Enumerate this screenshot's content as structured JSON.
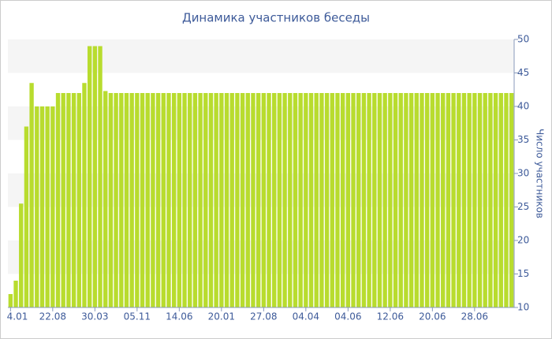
{
  "chart_data": {
    "type": "bar",
    "title": "Динамика участников беседы",
    "y_label": "Число участников",
    "color": "#b8dc2e",
    "categories": [
      "4.01",
      null,
      null,
      null,
      null,
      null,
      null,
      null,
      "22.08",
      null,
      null,
      null,
      null,
      null,
      null,
      null,
      "30.03",
      null,
      null,
      null,
      null,
      null,
      null,
      null,
      "05.11",
      null,
      null,
      null,
      null,
      null,
      null,
      null,
      "14.06",
      null,
      null,
      null,
      null,
      null,
      null,
      null,
      "20.01",
      null,
      null,
      null,
      null,
      null,
      null,
      null,
      "27.08",
      null,
      null,
      null,
      null,
      null,
      null,
      null,
      "04.04",
      null,
      null,
      null,
      null,
      null,
      null,
      null,
      "04.06",
      null,
      null,
      null,
      null,
      null,
      null,
      null,
      "12.06",
      null,
      null,
      null,
      null,
      null,
      null,
      null,
      "20.06",
      null,
      null,
      null,
      null,
      null,
      null,
      null,
      "28.06",
      null,
      null,
      null,
      null,
      null,
      null,
      null
    ],
    "values": [
      12,
      14,
      25.5,
      37,
      43.5,
      40,
      40,
      40,
      40,
      42,
      42,
      42,
      42,
      42,
      43.5,
      49,
      49,
      49,
      42.3,
      42,
      42,
      42,
      42,
      42,
      42,
      42,
      42,
      42,
      42,
      42,
      42,
      42,
      42,
      42,
      42,
      42,
      42,
      42,
      42,
      42,
      42,
      42,
      42,
      42,
      42,
      42,
      42,
      42,
      42,
      42,
      42,
      42,
      42,
      42,
      42,
      42,
      42,
      42,
      42,
      42,
      42,
      42,
      42,
      42,
      42,
      42,
      42,
      42,
      42,
      42,
      42,
      42,
      42,
      42,
      42,
      42,
      42,
      42,
      42,
      42,
      42,
      42,
      42,
      42,
      42,
      42,
      42,
      42,
      42,
      42,
      42,
      42,
      42,
      42,
      42,
      42
    ],
    "ylim": [
      10,
      50
    ],
    "yticks": [
      10,
      15,
      20,
      25,
      30,
      35,
      40,
      45,
      50
    ],
    "y_axis_side": "right",
    "grid": true
  }
}
